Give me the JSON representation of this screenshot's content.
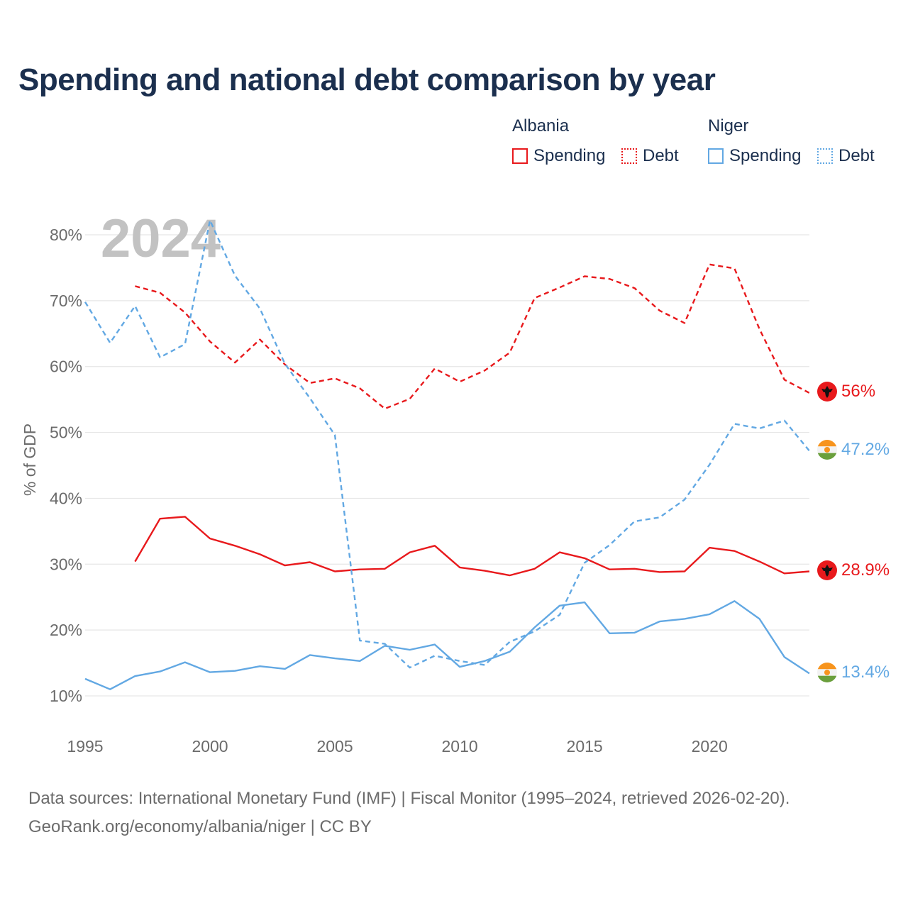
{
  "header": {
    "title": "Spending and national debt comparison by year"
  },
  "legend": {
    "groups": [
      {
        "country": "Albania",
        "color": "#e8191c",
        "items": [
          "Spending",
          "Debt"
        ]
      },
      {
        "country": "Niger",
        "color": "#62a8e3",
        "items": [
          "Spending",
          "Debt"
        ]
      }
    ]
  },
  "footer": {
    "line1": "Data sources: International Monetary Fund (IMF) | Fiscal Monitor (1995–2024, retrieved 2026-02-20).",
    "line2": "GeoRank.org/economy/albania/niger | CC BY"
  },
  "chart_data": {
    "type": "line",
    "title": "Spending and national debt comparison by year",
    "year_overlay": "2024",
    "ylabel": "% of GDP",
    "xlabel": "",
    "xlim": [
      1995,
      2024
    ],
    "ylim": [
      5,
      85
    ],
    "y_ticks": [
      10,
      20,
      30,
      40,
      50,
      60,
      70,
      80
    ],
    "y_tick_labels": [
      "10%",
      "20%",
      "30%",
      "40%",
      "50%",
      "60%",
      "70%",
      "80%"
    ],
    "x_ticks": [
      1995,
      2000,
      2005,
      2010,
      2015,
      2020
    ],
    "x_tick_labels": [
      "1995",
      "2000",
      "2005",
      "2010",
      "2015",
      "2020"
    ],
    "grid": true,
    "legend_position": "top-right",
    "series": [
      {
        "name": "Albania Debt",
        "country": "Albania",
        "metric": "Debt",
        "color": "#e8191c",
        "dashed": true,
        "points": [
          [
            1997,
            72.2
          ],
          [
            1998,
            71.2
          ],
          [
            1999,
            68.2
          ],
          [
            2000,
            63.8
          ],
          [
            2001,
            60.6
          ],
          [
            2002,
            64.1
          ],
          [
            2003,
            60.3
          ],
          [
            2004,
            57.5
          ],
          [
            2005,
            58.2
          ],
          [
            2006,
            56.7
          ],
          [
            2007,
            53.6
          ],
          [
            2008,
            55.1
          ],
          [
            2009,
            59.7
          ],
          [
            2010,
            57.7
          ],
          [
            2011,
            59.4
          ],
          [
            2012,
            62.1
          ],
          [
            2013,
            70.4
          ],
          [
            2014,
            72.0
          ],
          [
            2015,
            73.7
          ],
          [
            2016,
            73.3
          ],
          [
            2017,
            71.9
          ],
          [
            2018,
            68.5
          ],
          [
            2019,
            66.6
          ],
          [
            2020,
            75.5
          ],
          [
            2021,
            74.9
          ],
          [
            2022,
            65.7
          ],
          [
            2023,
            58.0
          ],
          [
            2024,
            56.0
          ]
        ],
        "end_label": "56%"
      },
      {
        "name": "Albania Spending",
        "country": "Albania",
        "metric": "Spending",
        "color": "#e8191c",
        "dashed": false,
        "points": [
          [
            1997,
            30.4
          ],
          [
            1998,
            36.9
          ],
          [
            1999,
            37.2
          ],
          [
            2000,
            33.9
          ],
          [
            2001,
            32.8
          ],
          [
            2002,
            31.5
          ],
          [
            2003,
            29.8
          ],
          [
            2004,
            30.3
          ],
          [
            2005,
            28.9
          ],
          [
            2006,
            29.2
          ],
          [
            2007,
            29.3
          ],
          [
            2008,
            31.8
          ],
          [
            2009,
            32.8
          ],
          [
            2010,
            29.5
          ],
          [
            2011,
            29.0
          ],
          [
            2012,
            28.3
          ],
          [
            2013,
            29.3
          ],
          [
            2014,
            31.8
          ],
          [
            2015,
            30.9
          ],
          [
            2016,
            29.2
          ],
          [
            2017,
            29.3
          ],
          [
            2018,
            28.8
          ],
          [
            2019,
            28.9
          ],
          [
            2020,
            32.5
          ],
          [
            2021,
            32.0
          ],
          [
            2022,
            30.4
          ],
          [
            2023,
            28.6
          ],
          [
            2024,
            28.9
          ]
        ],
        "end_label": "28.9%"
      },
      {
        "name": "Niger Debt",
        "country": "Niger",
        "metric": "Debt",
        "color": "#62a8e3",
        "dashed": true,
        "points": [
          [
            1995,
            69.8
          ],
          [
            1996,
            63.6
          ],
          [
            1997,
            69.2
          ],
          [
            1998,
            61.4
          ],
          [
            1999,
            63.4
          ],
          [
            2000,
            82.2
          ],
          [
            2001,
            73.8
          ],
          [
            2002,
            68.8
          ],
          [
            2003,
            60.4
          ],
          [
            2004,
            55.2
          ],
          [
            2005,
            49.6
          ],
          [
            2006,
            18.4
          ],
          [
            2007,
            17.9
          ],
          [
            2008,
            14.3
          ],
          [
            2009,
            16.1
          ],
          [
            2010,
            15.3
          ],
          [
            2011,
            14.7
          ],
          [
            2012,
            18.2
          ],
          [
            2013,
            19.8
          ],
          [
            2014,
            22.3
          ],
          [
            2015,
            30.2
          ],
          [
            2016,
            32.9
          ],
          [
            2017,
            36.5
          ],
          [
            2018,
            37.1
          ],
          [
            2019,
            39.8
          ],
          [
            2020,
            45.1
          ],
          [
            2021,
            51.3
          ],
          [
            2022,
            50.6
          ],
          [
            2023,
            51.8
          ],
          [
            2024,
            47.2
          ]
        ],
        "end_label": "47.2%"
      },
      {
        "name": "Niger Spending",
        "country": "Niger",
        "metric": "Spending",
        "color": "#62a8e3",
        "dashed": false,
        "points": [
          [
            1995,
            12.6
          ],
          [
            1996,
            11.0
          ],
          [
            1997,
            13.0
          ],
          [
            1998,
            13.7
          ],
          [
            1999,
            15.1
          ],
          [
            2000,
            13.6
          ],
          [
            2001,
            13.8
          ],
          [
            2002,
            14.5
          ],
          [
            2003,
            14.1
          ],
          [
            2004,
            16.2
          ],
          [
            2005,
            15.7
          ],
          [
            2006,
            15.3
          ],
          [
            2007,
            17.6
          ],
          [
            2008,
            17.0
          ],
          [
            2009,
            17.8
          ],
          [
            2010,
            14.4
          ],
          [
            2011,
            15.3
          ],
          [
            2012,
            16.7
          ],
          [
            2013,
            20.4
          ],
          [
            2014,
            23.7
          ],
          [
            2015,
            24.2
          ],
          [
            2016,
            19.5
          ],
          [
            2017,
            19.6
          ],
          [
            2018,
            21.3
          ],
          [
            2019,
            21.7
          ],
          [
            2020,
            22.4
          ],
          [
            2021,
            24.4
          ],
          [
            2022,
            21.7
          ],
          [
            2023,
            15.9
          ],
          [
            2024,
            13.4
          ]
        ],
        "end_label": "13.4%"
      }
    ]
  },
  "flags": {
    "albania_icon": "albania-flag-icon",
    "niger_icon": "niger-flag-icon"
  }
}
